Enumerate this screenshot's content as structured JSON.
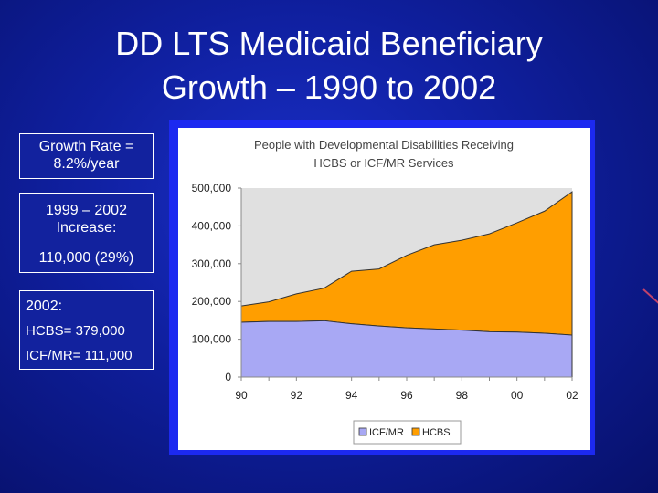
{
  "slide": {
    "title_line1": "DD LTS Medicaid Beneficiary",
    "title_line2": "Growth – 1990 to 2002"
  },
  "boxes": {
    "growth": {
      "line1": "Growth Rate =",
      "line2": "8.2%/year"
    },
    "increase": {
      "line1": "1999 – 2002",
      "line2": "Increase:",
      "line3": "110,000 (29%)"
    },
    "year2002": {
      "title": "2002:",
      "hcbs": "HCBS= 379,000",
      "icf": "ICF/MR= 111,000"
    }
  },
  "colors": {
    "icf": "#a8a8f4",
    "hcbs": "#ff9e00",
    "plot_bg": "#e0e0e0",
    "frame": "#1c29f0",
    "background": "#0f1f9e"
  },
  "chart_data": {
    "type": "area",
    "stacked": true,
    "title_line1": "People with Developmental Disabilities Receiving",
    "title_line2": "HCBS or ICF/MR Services",
    "x": [
      1990,
      1991,
      1992,
      1993,
      1994,
      1995,
      1996,
      1997,
      1998,
      1999,
      2000,
      2001,
      2002
    ],
    "x_tick_labels": [
      "90",
      "92",
      "94",
      "96",
      "98",
      "00",
      "02"
    ],
    "x_tick_values": [
      1990,
      1992,
      1994,
      1996,
      1998,
      2000,
      2002
    ],
    "y_tick_labels": [
      "0",
      "100,000",
      "200,000",
      "300,000",
      "400,000",
      "500,000"
    ],
    "y_tick_values": [
      0,
      100000,
      200000,
      300000,
      400000,
      500000
    ],
    "ylim": [
      0,
      500000
    ],
    "series": [
      {
        "name": "ICF/MR",
        "values": [
          145000,
          147000,
          147000,
          149000,
          141000,
          135000,
          130000,
          127000,
          124000,
          120000,
          119000,
          116000,
          111000
        ]
      },
      {
        "name": "HCBS",
        "values": [
          43000,
          52000,
          73000,
          86000,
          139000,
          151000,
          192000,
          223000,
          238000,
          259000,
          289000,
          323000,
          379000
        ]
      }
    ],
    "legend_position": "bottom",
    "grid": false
  }
}
